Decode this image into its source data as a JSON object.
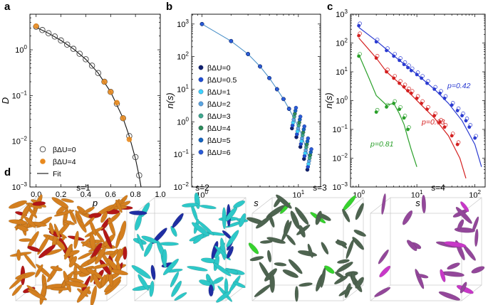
{
  "panels": {
    "a": {
      "label": "a"
    },
    "b": {
      "label": "b"
    },
    "c": {
      "label": "c"
    },
    "d": {
      "label": "d"
    }
  },
  "chart_data": [
    {
      "panel": "a",
      "type": "scatter",
      "xlabel": "p",
      "ylabel": "D",
      "xscale": "linear",
      "yscale": "log",
      "xlim": [
        -0.05,
        1.0
      ],
      "ylim": [
        0.001,
        6
      ],
      "xticks": [
        "0.0",
        "0.2",
        "0.4",
        "0.6",
        "0.8",
        "1.0"
      ],
      "yticks": [
        {
          "base": "10",
          "exp": "0"
        },
        {
          "base": "10",
          "exp": "−1"
        },
        {
          "base": "10",
          "exp": "−2"
        },
        {
          "base": "10",
          "exp": "−3"
        }
      ],
      "legend_position": "bottom-left",
      "legend": [
        {
          "label": "βΔU=0",
          "marker": "open-circle"
        },
        {
          "label": "βΔU=4",
          "marker": "filled-circle"
        },
        {
          "label": "Fit",
          "marker": "line"
        }
      ],
      "series": [
        {
          "name": "βΔU=0",
          "color": "#444444",
          "x": [
            0.0,
            0.05,
            0.1,
            0.15,
            0.2,
            0.25,
            0.3,
            0.35,
            0.4,
            0.45,
            0.5,
            0.55,
            0.6,
            0.65,
            0.7,
            0.75,
            0.8,
            0.83
          ],
          "y": [
            3.2,
            2.7,
            2.3,
            1.95,
            1.6,
            1.3,
            1.05,
            0.82,
            0.62,
            0.45,
            0.31,
            0.2,
            0.12,
            0.066,
            0.032,
            0.013,
            0.0045,
            0.0018
          ]
        },
        {
          "name": "βΔU=4",
          "color": "#e8891e",
          "x": [
            0.0,
            0.55,
            0.6,
            0.65,
            0.7,
            0.75
          ],
          "y": [
            3.3,
            0.2,
            0.12,
            0.07,
            0.032,
            0.011
          ]
        }
      ],
      "fit": {
        "name": "Fit",
        "color": "#111111",
        "x": [
          0.0,
          0.1,
          0.2,
          0.3,
          0.4,
          0.5,
          0.6,
          0.7,
          0.75,
          0.8,
          0.83,
          0.845
        ],
        "y": [
          3.1,
          2.3,
          1.6,
          1.05,
          0.62,
          0.31,
          0.12,
          0.032,
          0.013,
          0.0042,
          0.0017,
          0.001
        ]
      }
    },
    {
      "panel": "b",
      "type": "scatter",
      "xlabel": "s",
      "ylabel": "n(s)",
      "xscale": "log",
      "yscale": "log",
      "xlim": [
        0.78,
        17
      ],
      "ylim": [
        0.01,
        2000
      ],
      "xticks": [
        {
          "base": "10",
          "exp": "0"
        },
        {
          "base": "10",
          "exp": "1"
        }
      ],
      "yticks": [
        {
          "base": "10",
          "exp": "3"
        },
        {
          "base": "10",
          "exp": "2"
        },
        {
          "base": "10",
          "exp": "1"
        },
        {
          "base": "10",
          "exp": "0"
        },
        {
          "base": "10",
          "exp": "−1"
        },
        {
          "base": "10",
          "exp": "−2"
        }
      ],
      "legend_position": "left",
      "x": [
        1,
        2,
        3,
        4,
        5,
        6,
        7,
        8,
        9,
        10,
        11,
        12,
        13
      ],
      "line": {
        "color": "#4a90c8",
        "y": [
          1000,
          300,
          120,
          50,
          22,
          10,
          5,
          2.5,
          1.3,
          0.7,
          0.35,
          0.15,
          0.07
        ]
      },
      "series": [
        {
          "name": "βΔU=0",
          "color": "#10206e"
        },
        {
          "name": "βΔU=0.5",
          "color": "#1f4fd6"
        },
        {
          "name": "βΔU=1",
          "color": "#3fd3ff"
        },
        {
          "name": "βΔU=2",
          "color": "#5aa5e0"
        },
        {
          "name": "βΔU=3",
          "color": "#3fa88a"
        },
        {
          "name": "βΔU=4",
          "color": "#2e8b57"
        },
        {
          "name": "βΔU=5",
          "color": "#1565c0"
        },
        {
          "name": "βΔU=6",
          "color": "#2a5bd7"
        }
      ]
    },
    {
      "panel": "c",
      "type": "scatter",
      "xlabel": "s",
      "ylabel": "n(s)",
      "xscale": "log",
      "yscale": "log",
      "xlim": [
        0.72,
        150
      ],
      "ylim": [
        0.001,
        1000
      ],
      "xticks": [
        {
          "base": "10",
          "exp": "0"
        },
        {
          "base": "10",
          "exp": "1"
        },
        {
          "base": "10",
          "exp": "2"
        }
      ],
      "yticks": [
        {
          "base": "10",
          "exp": "3"
        },
        {
          "base": "10",
          "exp": "2"
        },
        {
          "base": "10",
          "exp": "1"
        },
        {
          "base": "10",
          "exp": "0"
        },
        {
          "base": "10",
          "exp": "−1"
        },
        {
          "base": "10",
          "exp": "−2"
        },
        {
          "base": "10",
          "exp": "−3"
        }
      ],
      "series": [
        {
          "name": "p=0.42",
          "label": "p=0.42",
          "color": "#2b3bd1",
          "line": {
            "x": [
              1,
              2,
              3,
              5,
              8,
              12,
              20,
              35,
              60,
              100,
              130
            ],
            "y": [
              350,
              120,
              60,
              25,
              12,
              6,
              2.5,
              0.8,
              0.2,
              0.03,
              0.005
            ]
          },
          "points": {
            "x": [
              1,
              2,
              3,
              4,
              5,
              6,
              7,
              8,
              10,
              12,
              15,
              20,
              25,
              30,
              40,
              50,
              60,
              70,
              80,
              100
            ],
            "y": [
              400,
              110,
              55,
              35,
              25,
              18,
              14,
              11,
              8,
              6,
              4,
              2.5,
              1.8,
              1.2,
              0.7,
              0.45,
              0.3,
              0.2,
              0.12,
              0.05
            ]
          }
        },
        {
          "name": "p=0.63",
          "label": "p=0.63",
          "color": "#d42020",
          "line": {
            "x": [
              1,
              2,
              3,
              5,
              8,
              12,
              20,
              35,
              55,
              70
            ],
            "y": [
              150,
              30,
              10,
              4,
              1.6,
              0.7,
              0.25,
              0.06,
              0.01,
              0.002
            ]
          },
          "points": {
            "x": [
              1,
              2,
              3,
              4,
              5,
              6,
              7,
              8,
              10,
              12,
              15,
              20,
              25,
              30,
              40,
              50
            ],
            "y": [
              180,
              30,
              10,
              6,
              4,
              3,
              2.2,
              1.8,
              1.2,
              0.8,
              0.5,
              0.3,
              0.18,
              0.12,
              0.06,
              0.03
            ]
          }
        },
        {
          "name": "p=0.81",
          "label": "p=0.81",
          "color": "#2aa02a",
          "line": {
            "x": [
              1,
              1.5,
              2,
              3,
              4,
              5,
              6,
              7,
              8,
              10
            ],
            "y": [
              40,
              6,
              1.5,
              0.7,
              0.8,
              0.35,
              0.15,
              0.05,
              0.02,
              0.005
            ]
          },
          "points": {
            "x": [
              1,
              2,
              3,
              4,
              5,
              6,
              7
            ],
            "y": [
              35,
              0.4,
              0.6,
              0.8,
              0.5,
              0.25,
              0.1
            ]
          }
        }
      ]
    }
  ],
  "snapshots": [
    {
      "label": "s=1",
      "color": "#d47f1f",
      "accent": "#b31717",
      "count": 150
    },
    {
      "label": "s=2",
      "color": "#2dc8c8",
      "accent": "#1f2ea3",
      "count": 70
    },
    {
      "label": "s=3",
      "color": "#4e6450",
      "accent": "#37d22e",
      "count": 55
    },
    {
      "label": "s=4",
      "color": "#93479a",
      "accent": "#c838c8",
      "count": 28
    }
  ]
}
